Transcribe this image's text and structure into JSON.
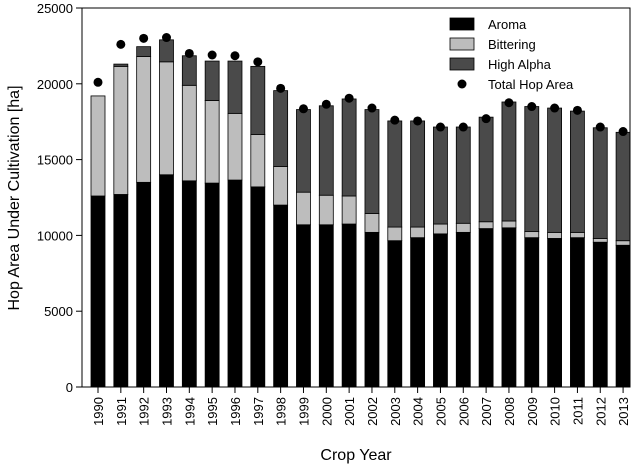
{
  "chart_data": {
    "type": "bar",
    "stacked": true,
    "xlabel": "Crop Year",
    "ylabel": "Hop Area Under Cultivation [ha]",
    "ylim": [
      0,
      25000
    ],
    "yticks": [
      0,
      5000,
      10000,
      15000,
      20000,
      25000
    ],
    "grid": false,
    "legend_position": "top-right",
    "categories": [
      "1990",
      "1991",
      "1992",
      "1993",
      "1994",
      "1995",
      "1996",
      "1997",
      "1998",
      "1999",
      "2000",
      "2001",
      "2002",
      "2003",
      "2004",
      "2005",
      "2006",
      "2007",
      "2008",
      "2009",
      "2010",
      "2011",
      "2012",
      "2013"
    ],
    "series": [
      {
        "name": "Aroma",
        "color": "#000000",
        "values": [
          12600,
          12700,
          13500,
          14000,
          13600,
          13450,
          13650,
          13200,
          12000,
          10700,
          10700,
          10750,
          10200,
          9650,
          9850,
          10100,
          10200,
          10450,
          10500,
          9850,
          9800,
          9850,
          9550,
          9350
        ]
      },
      {
        "name": "Bittering",
        "color": "#bdbdbd",
        "values": [
          6600,
          8450,
          8300,
          7450,
          6300,
          5450,
          4400,
          3450,
          2550,
          2150,
          1950,
          1850,
          1250,
          900,
          700,
          650,
          600,
          450,
          450,
          400,
          400,
          350,
          250,
          300
        ]
      },
      {
        "name": "High Alpha",
        "color": "#4a4a4a",
        "values": [
          0,
          150,
          650,
          1450,
          1950,
          2600,
          3450,
          4500,
          5000,
          5450,
          5900,
          6400,
          6850,
          7000,
          7000,
          6400,
          6350,
          6900,
          7850,
          8250,
          8200,
          8000,
          7300,
          7150
        ]
      }
    ],
    "total": {
      "name": "Total Hop Area",
      "marker": "dot",
      "color": "#000000",
      "values": [
        20100,
        22600,
        23000,
        23050,
        22000,
        21900,
        21850,
        21450,
        19700,
        18350,
        18650,
        19050,
        18400,
        17600,
        17550,
        17150,
        17150,
        17700,
        18750,
        18500,
        18400,
        18250,
        17150,
        16850
      ]
    }
  }
}
